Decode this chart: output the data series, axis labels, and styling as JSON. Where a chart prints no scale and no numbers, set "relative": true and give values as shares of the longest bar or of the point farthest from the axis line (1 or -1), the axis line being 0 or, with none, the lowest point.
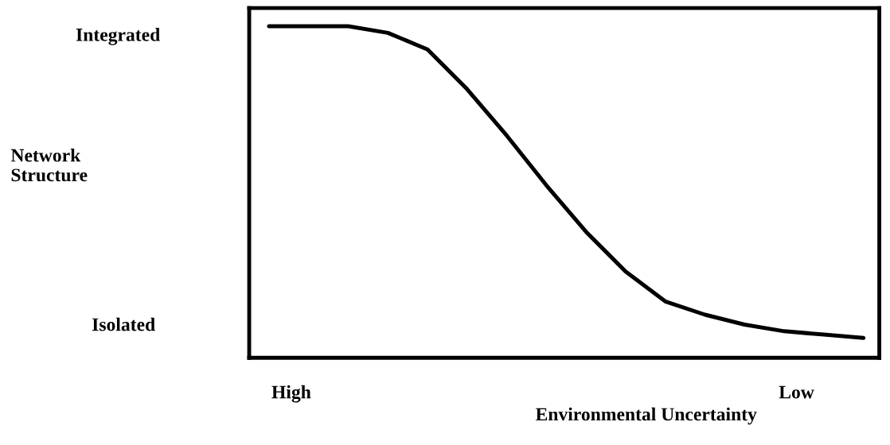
{
  "chart_data": {
    "type": "line",
    "relative": true,
    "xlabel": "Environmental Uncertainty",
    "categories": [
      null,
      null,
      null,
      null,
      null,
      null,
      null,
      null,
      null,
      null,
      null,
      null,
      null,
      null,
      null,
      null
    ],
    "series": [
      {
        "color": "#000000",
        "values": [
          1.0,
          1.0,
          1.0,
          0.98,
          0.93,
          0.81,
          0.67,
          0.52,
          0.38,
          0.26,
          0.17,
          0.13,
          0.1,
          0.08,
          0.07,
          0.06
        ]
      }
    ],
    "annotations": [
      "Integrated",
      "Network\nStructure",
      "Isolated",
      "High",
      "Low"
    ],
    "legend": false,
    "tick_labels": false,
    "line_style": "solid",
    "marker": "none"
  }
}
